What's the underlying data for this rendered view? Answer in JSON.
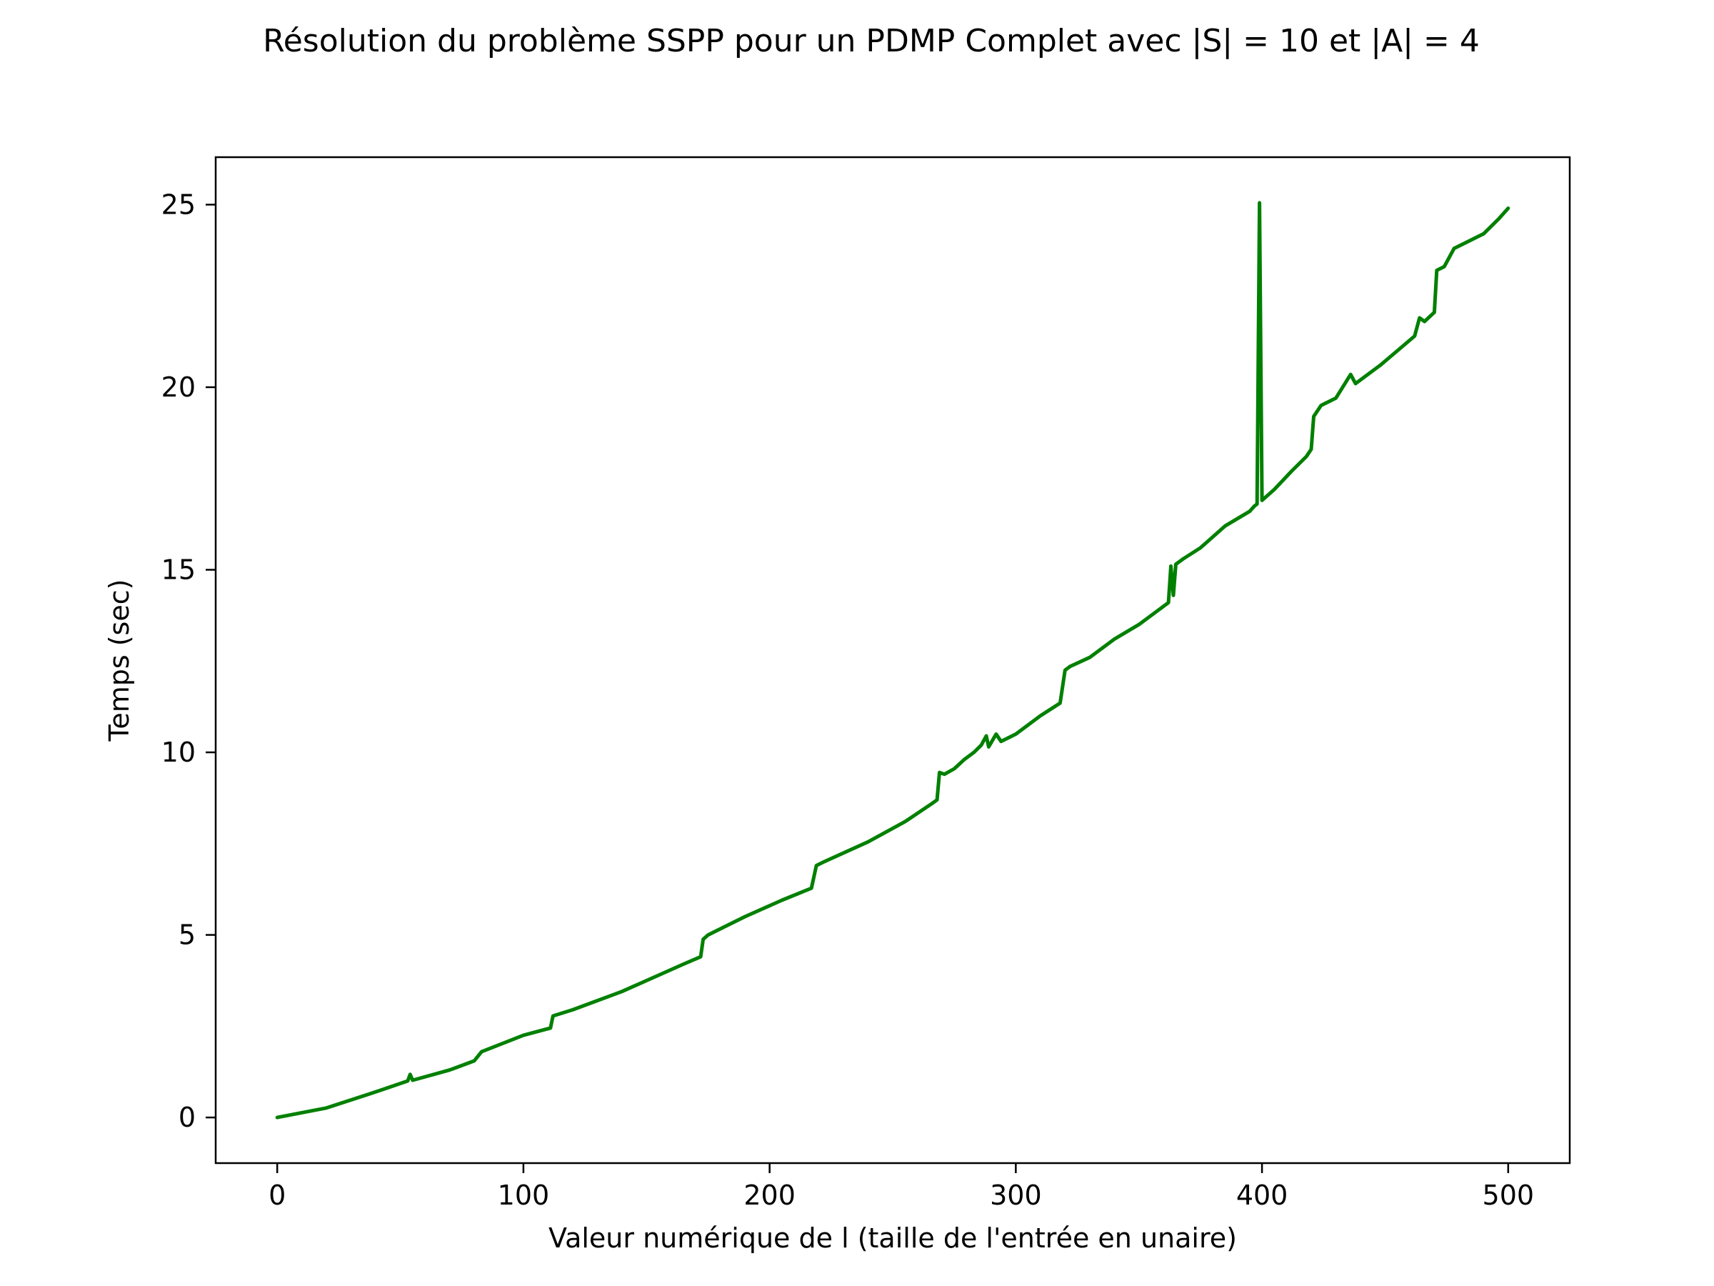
{
  "chart_data": {
    "type": "line",
    "title": "Résolution du problème SSPP pour un PDMP Complet avec |S| = 10 et |A| = 4",
    "xlabel": "Valeur numérique de l (taille de l'entrée en unaire)",
    "ylabel": "Temps (sec)",
    "xlim": [
      -25,
      525
    ],
    "ylim": [
      -1.25,
      26.3
    ],
    "xticks": [
      0,
      100,
      200,
      300,
      400,
      500
    ],
    "xtick_labels": [
      "0",
      "100",
      "200",
      "300",
      "400",
      "500"
    ],
    "yticks": [
      0,
      5,
      10,
      15,
      20,
      25
    ],
    "ytick_labels": [
      "0",
      "5",
      "10",
      "15",
      "20",
      "25"
    ],
    "grid": false,
    "colors": {
      "line": "#008000",
      "axes": "#000000",
      "background": "#ffffff"
    },
    "series": [
      {
        "color": "#008000",
        "points": [
          [
            0,
            0
          ],
          [
            20,
            0.26
          ],
          [
            40,
            0.7
          ],
          [
            53,
            1.0
          ],
          [
            54,
            1.18
          ],
          [
            55,
            1.02
          ],
          [
            70,
            1.3
          ],
          [
            80,
            1.55
          ],
          [
            83,
            1.8
          ],
          [
            100,
            2.25
          ],
          [
            111,
            2.45
          ],
          [
            112,
            2.78
          ],
          [
            120,
            2.95
          ],
          [
            140,
            3.45
          ],
          [
            150,
            3.75
          ],
          [
            165,
            4.2
          ],
          [
            172,
            4.4
          ],
          [
            173,
            4.88
          ],
          [
            175,
            5.0
          ],
          [
            190,
            5.5
          ],
          [
            205,
            5.95
          ],
          [
            217,
            6.28
          ],
          [
            219,
            6.9
          ],
          [
            222,
            7.0
          ],
          [
            240,
            7.55
          ],
          [
            255,
            8.1
          ],
          [
            266,
            8.6
          ],
          [
            268,
            8.7
          ],
          [
            269,
            9.45
          ],
          [
            271,
            9.4
          ],
          [
            275,
            9.55
          ],
          [
            279,
            9.8
          ],
          [
            283,
            10.0
          ],
          [
            286,
            10.2
          ],
          [
            288,
            10.45
          ],
          [
            289,
            10.15
          ],
          [
            292,
            10.5
          ],
          [
            294,
            10.3
          ],
          [
            300,
            10.5
          ],
          [
            310,
            11.0
          ],
          [
            318,
            11.35
          ],
          [
            320,
            12.25
          ],
          [
            322,
            12.35
          ],
          [
            330,
            12.6
          ],
          [
            340,
            13.1
          ],
          [
            350,
            13.5
          ],
          [
            362,
            14.1
          ],
          [
            363,
            15.1
          ],
          [
            364,
            14.3
          ],
          [
            365,
            15.15
          ],
          [
            368,
            15.3
          ],
          [
            375,
            15.6
          ],
          [
            385,
            16.2
          ],
          [
            395,
            16.6
          ],
          [
            397,
            16.75
          ],
          [
            398,
            16.8
          ],
          [
            399,
            25.05
          ],
          [
            400,
            16.9
          ],
          [
            405,
            17.2
          ],
          [
            412,
            17.7
          ],
          [
            418,
            18.1
          ],
          [
            420,
            18.3
          ],
          [
            421,
            19.2
          ],
          [
            424,
            19.5
          ],
          [
            430,
            19.7
          ],
          [
            436,
            20.35
          ],
          [
            438,
            20.1
          ],
          [
            448,
            20.6
          ],
          [
            455,
            21.0
          ],
          [
            462,
            21.4
          ],
          [
            464,
            21.9
          ],
          [
            466,
            21.8
          ],
          [
            470,
            22.05
          ],
          [
            471,
            23.2
          ],
          [
            474,
            23.3
          ],
          [
            478,
            23.8
          ],
          [
            484,
            24.0
          ],
          [
            490,
            24.2
          ],
          [
            496,
            24.6
          ],
          [
            500,
            24.9
          ]
        ]
      }
    ]
  }
}
